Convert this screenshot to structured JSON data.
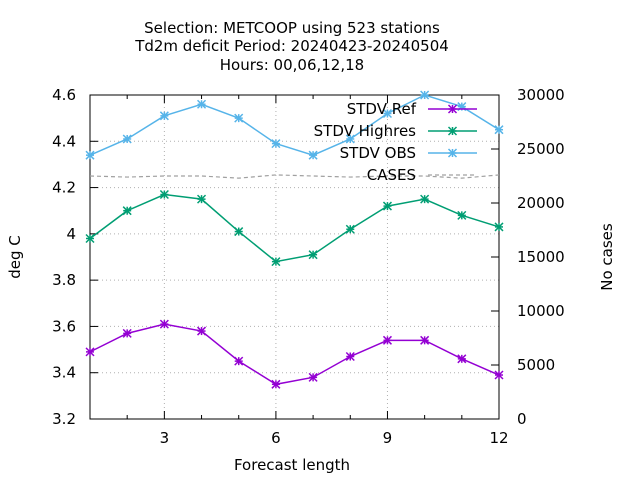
{
  "chart_data": {
    "type": "line",
    "title_lines": [
      "Selection: METCOOP using   523 stations",
      "Td2m deficit   Period: 20240423-20240504",
      "Hours:  00,06,12,18"
    ],
    "xlabel": "Forecast length",
    "ylabel": "deg C",
    "y2label": "No cases",
    "x": [
      1,
      2,
      3,
      4,
      5,
      6,
      7,
      8,
      9,
      10,
      11,
      12
    ],
    "xlim": [
      1,
      12
    ],
    "ylim": [
      3.2,
      4.6
    ],
    "y2lim": [
      0,
      30000
    ],
    "xticks": [
      3,
      6,
      9,
      12
    ],
    "yticks": [
      3.2,
      3.4,
      3.6,
      3.8,
      4,
      4.2,
      4.4,
      4.6
    ],
    "y2ticks": [
      0,
      5000,
      10000,
      15000,
      20000,
      25000,
      30000
    ],
    "grid": true,
    "legend_position": "top-right",
    "series": [
      {
        "name": "STDV Ref",
        "axis": "y1",
        "color": "#9400d3",
        "values": [
          3.49,
          3.57,
          3.61,
          3.58,
          3.45,
          3.35,
          3.38,
          3.47,
          3.54,
          3.54,
          3.46,
          3.39
        ]
      },
      {
        "name": "STDV Highres",
        "axis": "y1",
        "color": "#009e73",
        "values": [
          3.98,
          4.1,
          4.17,
          4.15,
          4.01,
          3.88,
          3.91,
          4.02,
          4.12,
          4.15,
          4.08,
          4.03
        ]
      },
      {
        "name": "STDV OBS",
        "axis": "y1",
        "color": "#56b4e9",
        "values": [
          4.34,
          4.41,
          4.51,
          4.56,
          4.5,
          4.39,
          4.34,
          4.41,
          4.52,
          4.6,
          4.55,
          4.45
        ]
      },
      {
        "name": "CASES",
        "axis": "y2",
        "color": "#a0a0a0",
        "dashed": true,
        "values": [
          22500,
          22400,
          22500,
          22500,
          22300,
          22600,
          22500,
          22400,
          22500,
          22500,
          22300,
          22600
        ]
      }
    ]
  }
}
